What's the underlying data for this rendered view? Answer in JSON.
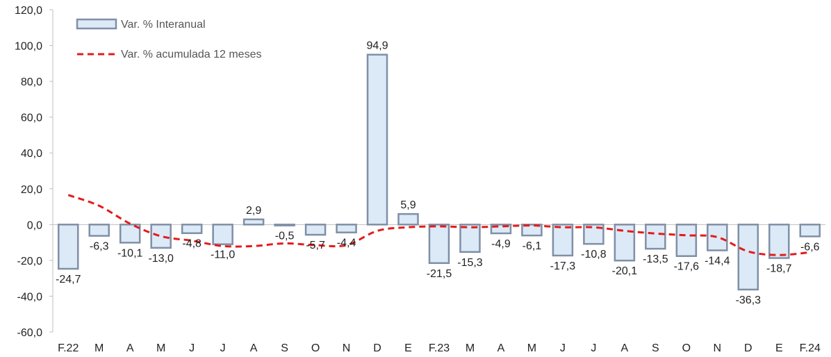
{
  "chart_data": {
    "type": "bar",
    "categories": [
      "F.22",
      "M",
      "A",
      "M",
      "J",
      "J",
      "A",
      "S",
      "O",
      "N",
      "D",
      "E",
      "F.23",
      "M",
      "A",
      "M",
      "J",
      "J",
      "A",
      "S",
      "O",
      "N",
      "D",
      "E",
      "F.24"
    ],
    "series": [
      {
        "name": "Var. % Interanual",
        "type": "bar",
        "values": [
          -24.7,
          -6.3,
          -10.1,
          -13.0,
          -4.8,
          -11.0,
          2.9,
          -0.5,
          -5.7,
          -4.4,
          94.9,
          5.9,
          -21.5,
          -15.3,
          -4.9,
          -6.1,
          -17.3,
          -10.8,
          -20.1,
          -13.5,
          -17.6,
          -14.4,
          -36.3,
          -18.7,
          -6.6
        ],
        "labels": [
          "-24,7",
          "-6,3",
          "-10,1",
          "-13,0",
          "-4,8",
          "-11,0",
          "2,9",
          "-0,5",
          "-5,7",
          "-4,4",
          "94,9",
          "5,9",
          "-21,5",
          "-15,3",
          "-4,9",
          "-6,1",
          "-17,3",
          "-10,8",
          "-20,1",
          "-13,5",
          "-17,6",
          "-14,4",
          "-36,3",
          "-18,7",
          "-6,6"
        ]
      },
      {
        "name": "Var. % acumulada  12 meses",
        "type": "line",
        "values": [
          16.5,
          10.5,
          0.5,
          -6.5,
          -9.0,
          -12.0,
          -12.0,
          -10.5,
          -11.5,
          -11.5,
          -3.5,
          -1.5,
          -1.0,
          -1.5,
          -1.0,
          -0.5,
          -1.5,
          -1.5,
          -3.5,
          -5.0,
          -6.0,
          -7.0,
          -15.0,
          -17.0,
          -15.5
        ]
      }
    ],
    "yticks": [
      "120,0",
      "100,0",
      "80,0",
      "60,0",
      "40,0",
      "20,0",
      "0,0",
      "-20,0",
      "-40,0",
      "-60,0"
    ],
    "ylim": [
      -60,
      120
    ],
    "grid": false,
    "legend_position": "top-left",
    "colors": {
      "bar_fill": "#dce9f6",
      "bar_stroke": "#7f8fa6",
      "line": "#e31b1b",
      "axis": "#bfbfbf"
    }
  }
}
